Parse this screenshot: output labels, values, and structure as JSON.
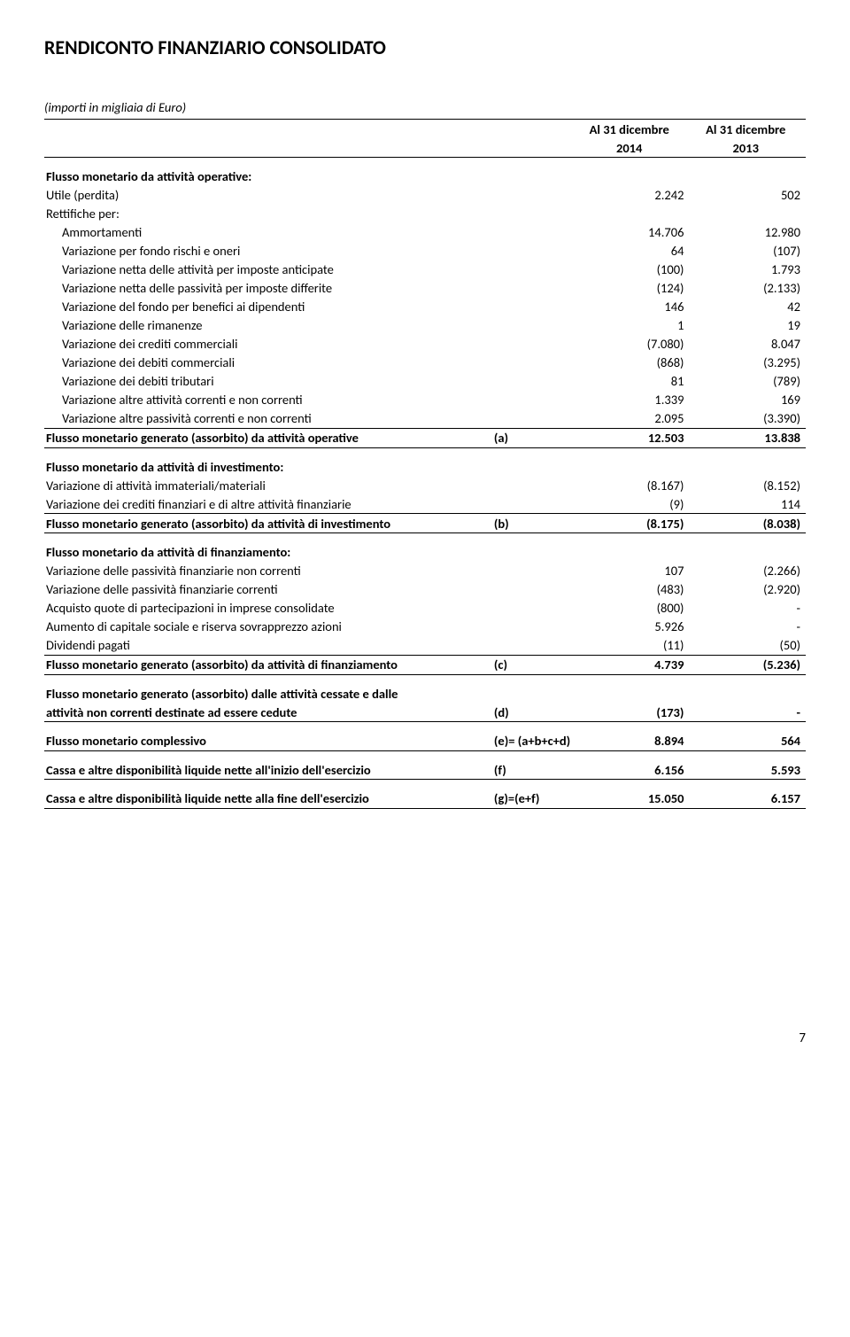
{
  "page": {
    "title": "RENDICONTO FINANZIARIO CONSOLIDATO",
    "subtitle": "(importi in migliaia di Euro)",
    "page_number": "7"
  },
  "header": {
    "date_label": "Al 31 dicembre",
    "year1": "2014",
    "year2": "2013"
  },
  "sections": {
    "operative": {
      "title": "Flusso monetario da attività operative:",
      "rows": [
        {
          "label": "Utile (perdita)",
          "v1": "2.242",
          "v2": "502"
        },
        {
          "label": "Rettifiche per:",
          "v1": "",
          "v2": ""
        }
      ],
      "indented": [
        {
          "label": "Ammortamenti",
          "v1": "14.706",
          "v2": "12.980"
        },
        {
          "label": "Variazione per fondo rischi e oneri",
          "v1": "64",
          "v2": "(107)"
        },
        {
          "label": "Variazione netta delle attività per imposte anticipate",
          "v1": "(100)",
          "v2": "1.793"
        },
        {
          "label": "Variazione netta delle passività per imposte differite",
          "v1": "(124)",
          "v2": "(2.133)"
        },
        {
          "label": "Variazione del fondo per benefici ai dipendenti",
          "v1": "146",
          "v2": "42"
        },
        {
          "label": "Variazione delle rimanenze",
          "v1": "1",
          "v2": "19"
        },
        {
          "label": "Variazione dei crediti commerciali",
          "v1": "(7.080)",
          "v2": "8.047"
        },
        {
          "label": "Variazione dei debiti commerciali",
          "v1": "(868)",
          "v2": "(3.295)"
        },
        {
          "label": "Variazione dei debiti tributari",
          "v1": "81",
          "v2": "(789)"
        },
        {
          "label": "Variazione altre attività correnti e non correnti",
          "v1": "1.339",
          "v2": "169"
        },
        {
          "label": "Variazione altre passività correnti e non correnti",
          "v1": "2.095",
          "v2": "(3.390)"
        }
      ],
      "total": {
        "label": "Flusso monetario generato (assorbito) da attività operative",
        "note": "(a)",
        "v1": "12.503",
        "v2": "13.838"
      }
    },
    "investimento": {
      "title": "Flusso monetario da attività di investimento:",
      "rows": [
        {
          "label": "Variazione di attività immateriali/materiali",
          "v1": "(8.167)",
          "v2": "(8.152)"
        },
        {
          "label": "Variazione dei crediti finanziari e di altre attività finanziarie",
          "v1": "(9)",
          "v2": "114"
        }
      ],
      "total": {
        "label": "Flusso monetario generato (assorbito) da attività di investimento",
        "note": "(b)",
        "v1": "(8.175)",
        "v2": "(8.038)"
      }
    },
    "finanziamento": {
      "title": "Flusso monetario da attività di finanziamento:",
      "rows": [
        {
          "label": "Variazione delle passività finanziarie non correnti",
          "v1": "107",
          "v2": "(2.266)"
        },
        {
          "label": "Variazione delle passività finanziarie correnti",
          "v1": "(483)",
          "v2": "(2.920)"
        },
        {
          "label": "Acquisto quote di partecipazioni in imprese consolidate",
          "v1": "(800)",
          "v2": "-"
        },
        {
          "label": "Aumento di capitale sociale e riserva sovrapprezzo azioni",
          "v1": "5.926",
          "v2": "-"
        },
        {
          "label": "Dividendi pagati",
          "v1": "(11)",
          "v2": "(50)"
        }
      ],
      "total": {
        "label": "Flusso monetario generato (assorbito) da attività di finanziamento",
        "note": "(c)",
        "v1": "4.739",
        "v2": "(5.236)"
      }
    },
    "cessate": {
      "label1": "Flusso monetario generato (assorbito) dalle attività cessate e dalle",
      "label2": "attività non correnti destinate ad essere cedute",
      "note": "(d)",
      "v1": "(173)",
      "v2": "-"
    },
    "complessivo": {
      "label": "Flusso monetario complessivo",
      "note": "(e)= (a+b+c+d)",
      "v1": "8.894",
      "v2": "564"
    },
    "cassa_inizio": {
      "label": "Cassa e altre disponibilità liquide nette all'inizio dell'esercizio",
      "note": "(f)",
      "v1": "6.156",
      "v2": "5.593"
    },
    "cassa_fine": {
      "label": "Cassa e altre disponibilità liquide nette alla fine dell'esercizio",
      "note": "(g)=(e+f)",
      "v1": "15.050",
      "v2": "6.157"
    }
  }
}
